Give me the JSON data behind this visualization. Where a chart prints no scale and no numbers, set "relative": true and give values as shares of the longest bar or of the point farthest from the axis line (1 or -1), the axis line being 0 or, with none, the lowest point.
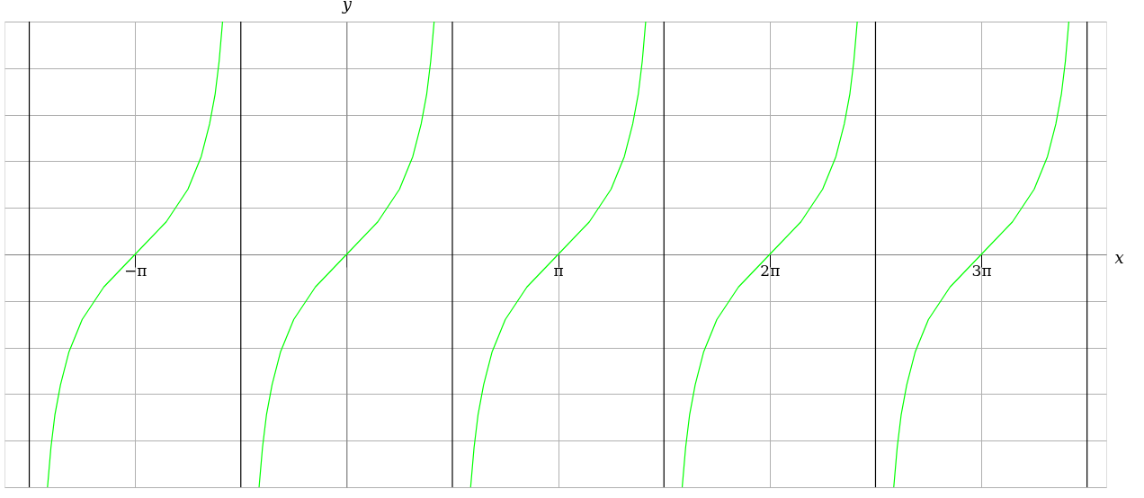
{
  "chart_data": {
    "type": "line",
    "xlabel": "x",
    "ylabel": "y",
    "xlim": [
      -5.08,
      11.28
    ],
    "relative": true,
    "xticks": [
      {
        "value": -3.1416,
        "label": "−π"
      },
      {
        "value": 0,
        "label": null
      },
      {
        "value": 3.1416,
        "label": "π"
      },
      {
        "value": 6.2832,
        "label": "2π"
      },
      {
        "value": 9.4248,
        "label": "3π"
      }
    ],
    "tick_labels": "x",
    "grid": true,
    "marker": "none",
    "line_style": "solid",
    "series": [
      {
        "color": "#00ff00",
        "x": [
          -4.4414,
          -4.3906,
          -4.3319,
          -4.2487,
          -4.1244,
          -3.927,
          -3.6052,
          -3.1416,
          -2.678,
          -2.3562,
          -2.1588,
          -2.0345,
          -1.9513,
          -1.8926,
          -1.8418
        ],
        "values": [
          -1,
          -0.83,
          -0.69,
          -0.56,
          -0.42,
          -0.28,
          -0.14,
          0,
          0.14,
          0.28,
          0.42,
          0.56,
          0.69,
          0.83,
          1
        ]
      },
      {
        "color": "#00ff00",
        "x": [
          -1.2998,
          -1.249,
          -1.1903,
          -1.1071,
          -0.9828,
          -0.7854,
          -0.4636,
          0,
          0.4636,
          0.7854,
          0.9828,
          1.1071,
          1.1903,
          1.249,
          1.2998
        ],
        "values": [
          -1,
          -0.83,
          -0.69,
          -0.56,
          -0.42,
          -0.28,
          -0.14,
          0,
          0.14,
          0.28,
          0.42,
          0.56,
          0.69,
          0.83,
          1
        ]
      },
      {
        "color": "#00ff00",
        "x": [
          1.8418,
          1.8926,
          1.9513,
          2.0345,
          2.1588,
          2.3562,
          2.678,
          3.1416,
          3.6052,
          3.927,
          4.1244,
          4.2487,
          4.3319,
          4.3906,
          4.4414
        ],
        "values": [
          -1,
          -0.83,
          -0.69,
          -0.56,
          -0.42,
          -0.28,
          -0.14,
          0,
          0.14,
          0.28,
          0.42,
          0.56,
          0.69,
          0.83,
          1
        ]
      },
      {
        "color": "#00ff00",
        "x": [
          4.9834,
          5.0342,
          5.0929,
          5.1761,
          5.3004,
          5.4978,
          5.8196,
          6.2832,
          6.7468,
          7.0686,
          7.266,
          7.3903,
          7.4735,
          7.5322,
          7.583
        ],
        "values": [
          -1,
          -0.83,
          -0.69,
          -0.56,
          -0.42,
          -0.28,
          -0.14,
          0,
          0.14,
          0.28,
          0.42,
          0.56,
          0.69,
          0.83,
          1
        ]
      },
      {
        "color": "#00ff00",
        "x": [
          8.125,
          8.1758,
          8.2345,
          8.3177,
          8.442,
          8.6394,
          8.9612,
          9.4248,
          9.8884,
          10.2102,
          10.4076,
          10.5319,
          10.6151,
          10.6738,
          10.7246
        ],
        "values": [
          -1,
          -0.83,
          -0.69,
          -0.56,
          -0.42,
          -0.28,
          -0.14,
          0,
          0.14,
          0.28,
          0.42,
          0.56,
          0.69,
          0.83,
          1
        ]
      }
    ],
    "ref_lines": [
      {
        "axis": "x",
        "value": -4.7124,
        "color": "#000000",
        "line_style": "solid"
      },
      {
        "axis": "x",
        "value": -1.5708,
        "color": "#000000",
        "line_style": "solid"
      },
      {
        "axis": "x",
        "value": 1.5708,
        "color": "#000000",
        "line_style": "solid"
      },
      {
        "axis": "x",
        "value": 4.7124,
        "color": "#000000",
        "line_style": "solid"
      },
      {
        "axis": "x",
        "value": 7.854,
        "color": "#000000",
        "line_style": "solid"
      },
      {
        "axis": "x",
        "value": 10.9956,
        "color": "#000000",
        "line_style": "solid"
      }
    ]
  }
}
